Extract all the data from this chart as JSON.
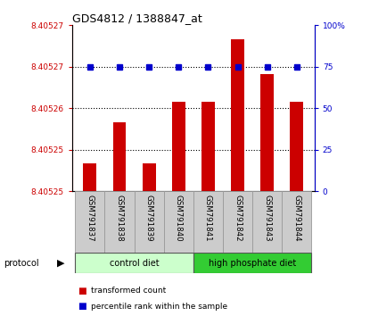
{
  "title": "GDS4812 / 1388847_at",
  "samples": [
    "GSM791837",
    "GSM791838",
    "GSM791839",
    "GSM791840",
    "GSM791841",
    "GSM791842",
    "GSM791843",
    "GSM791844"
  ],
  "transformed_counts": [
    8.405252,
    8.405258,
    8.405252,
    8.405261,
    8.405261,
    8.40527,
    8.405265,
    8.405261
  ],
  "percentile_ranks": [
    75,
    75,
    75,
    75,
    75,
    75,
    75,
    75
  ],
  "ylim_left": [
    8.405248,
    8.405272
  ],
  "ylim_right": [
    0,
    100
  ],
  "bar_color": "#cc0000",
  "dot_color": "#0000cc",
  "groups": [
    {
      "label": "control diet",
      "start": 0,
      "end": 4,
      "color": "#ccffcc"
    },
    {
      "label": "high phosphate diet",
      "start": 4,
      "end": 8,
      "color": "#33cc33"
    }
  ],
  "protocol_label": "protocol",
  "legend_items": [
    {
      "label": "transformed count",
      "color": "#cc0000"
    },
    {
      "label": "percentile rank within the sample",
      "color": "#0000cc"
    }
  ],
  "yaxis_left_color": "#cc0000",
  "yaxis_right_color": "#0000cc",
  "label_box_color": "#cccccc",
  "label_box_edge": "#999999"
}
